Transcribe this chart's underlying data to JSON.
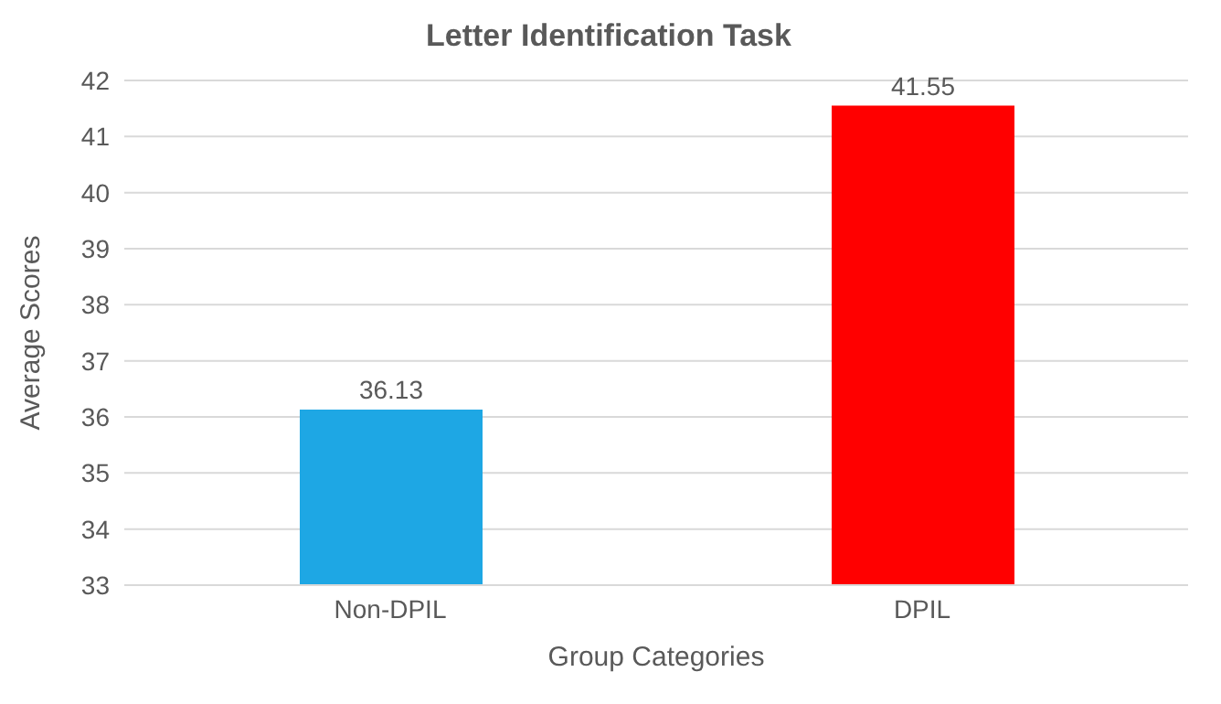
{
  "chart_data": {
    "type": "bar",
    "title": "Letter Identification Task",
    "xlabel": "Group Categories",
    "ylabel": "Average  Scores",
    "categories": [
      "Non-DPIL",
      "DPIL"
    ],
    "values": [
      36.13,
      41.55
    ],
    "colors": [
      "#1ea7e4",
      "#ff0000"
    ],
    "ylim": [
      33,
      42
    ],
    "yticks": [
      33,
      34,
      35,
      36,
      37,
      38,
      39,
      40,
      41,
      42
    ],
    "grid": "y",
    "data_labels": true
  }
}
